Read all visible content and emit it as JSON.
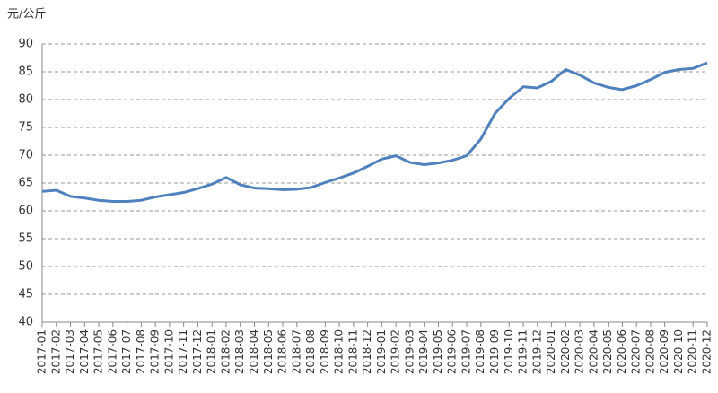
{
  "chart_data": {
    "type": "line",
    "y_label": "元/公斤",
    "categories": [
      "2017-01",
      "2017-02",
      "2017-03",
      "2017-04",
      "2017-05",
      "2017-06",
      "2017-07",
      "2017-08",
      "2017-09",
      "2017-10",
      "2017-11",
      "2017-12",
      "2018-01",
      "2018-02",
      "2018-03",
      "2018-04",
      "2018-05",
      "2018-06",
      "2018-07",
      "2018-08",
      "2018-09",
      "2018-10",
      "2018-11",
      "2018-12",
      "2019-01",
      "2019-02",
      "2019-03",
      "2019-04",
      "2019-05",
      "2019-06",
      "2019-07",
      "2019-08",
      "2019-09",
      "2019-10",
      "2019-11",
      "2019-12",
      "2020-01",
      "2020-02",
      "2020-03",
      "2020-04",
      "2020-05",
      "2020-06",
      "2020-07",
      "2020-08",
      "2020-09",
      "2020-10",
      "2020-11",
      "2020-12"
    ],
    "values": [
      63.5,
      63.7,
      62.6,
      62.3,
      61.9,
      61.7,
      61.7,
      61.9,
      62.5,
      62.9,
      63.3,
      64.0,
      64.8,
      66.0,
      64.7,
      64.1,
      64.0,
      63.8,
      63.9,
      64.2,
      65.1,
      65.9,
      66.8,
      68.0,
      69.3,
      69.9,
      68.7,
      68.3,
      68.6,
      69.1,
      69.9,
      72.9,
      77.5,
      80.2,
      82.3,
      82.1,
      83.3,
      85.4,
      84.4,
      83.0,
      82.2,
      81.8,
      82.5,
      83.6,
      84.9,
      85.4,
      85.6,
      86.6
    ],
    "color": "#4f81bd",
    "ylim": [
      40,
      90
    ],
    "yticks": [
      40,
      45,
      50,
      55,
      60,
      65,
      70,
      75,
      80,
      85,
      90
    ],
    "grid": true
  }
}
